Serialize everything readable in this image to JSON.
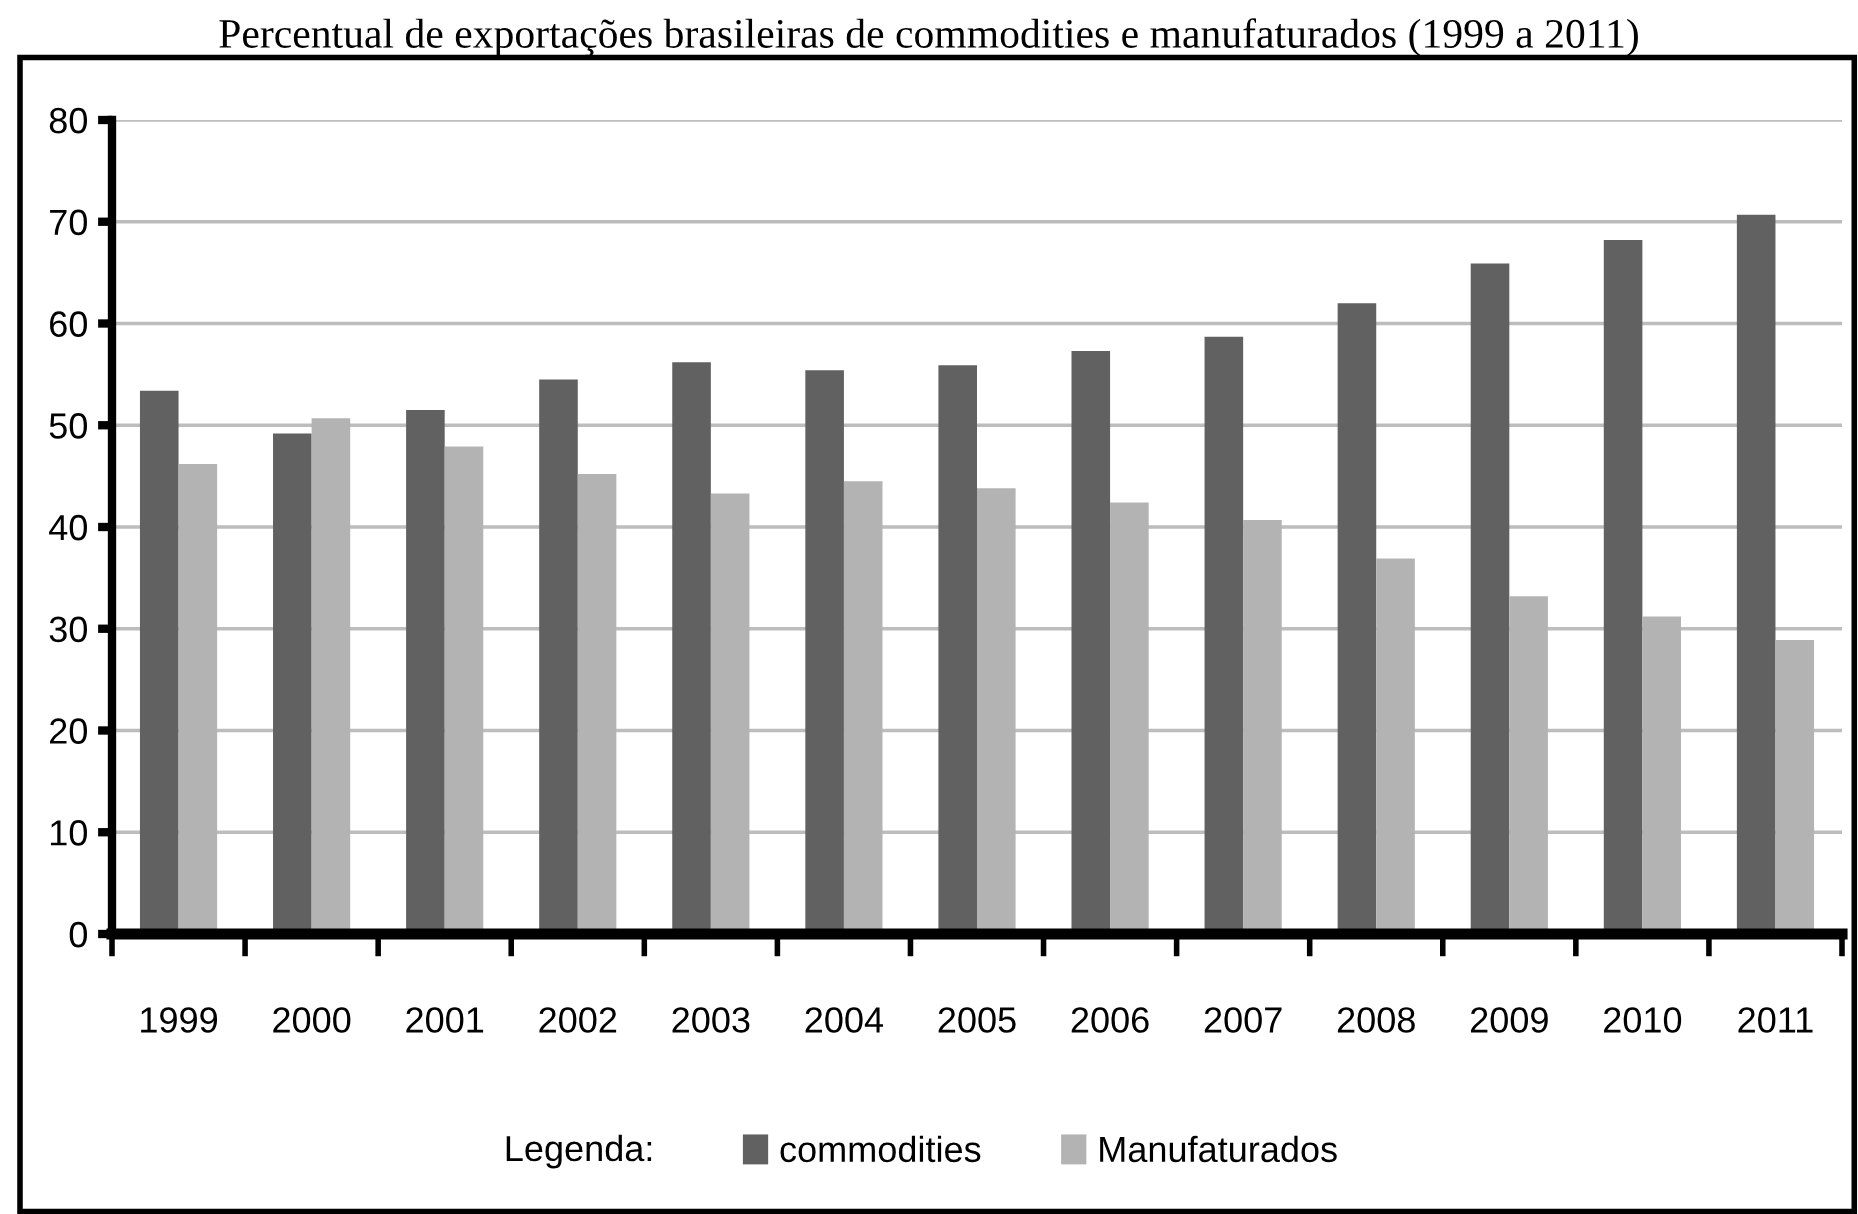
{
  "chart_data": {
    "type": "bar",
    "title": "Percentual de exportações brasileiras de commodities e manufaturados (1999 a 2011)",
    "categories": [
      "1999",
      "2000",
      "2001",
      "2002",
      "2003",
      "2004",
      "2005",
      "2006",
      "2007",
      "2008",
      "2009",
      "2010",
      "2011"
    ],
    "series": [
      {
        "name": "commodities",
        "color": "#616161",
        "values": [
          53.4,
          49.2,
          51.5,
          54.5,
          56.2,
          55.4,
          55.9,
          57.3,
          58.7,
          62.0,
          65.9,
          68.2,
          70.7
        ]
      },
      {
        "name": "Manufaturados",
        "color": "#b3b3b3",
        "values": [
          46.2,
          50.7,
          47.9,
          45.2,
          43.3,
          44.5,
          43.8,
          42.4,
          40.7,
          36.9,
          33.2,
          31.2,
          28.9
        ]
      }
    ],
    "legend_title": "Legenda:",
    "legend": "bottom",
    "ylim": [
      0,
      80
    ],
    "yticks": [
      0,
      10,
      20,
      30,
      40,
      50,
      60,
      70,
      80
    ],
    "grid": "y"
  }
}
